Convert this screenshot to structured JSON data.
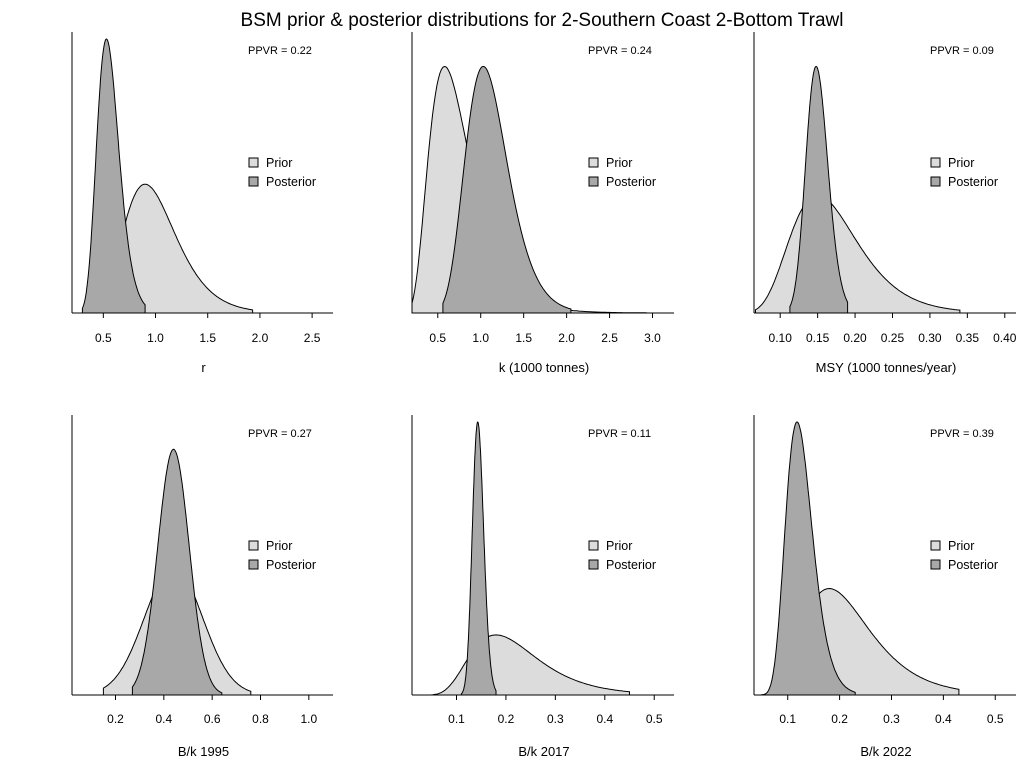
{
  "title": "BSM prior & posterior distributions for 2-Southern Coast 2-Bottom Trawl",
  "chart_data": [
    {
      "type": "area",
      "xlabel": "r",
      "ppvr": "PPVR = 0.22",
      "xlim": [
        0.2,
        2.7
      ],
      "xticks": [
        0.5,
        1.0,
        1.5,
        2.0,
        2.5
      ],
      "tick_labels": [
        "0.5",
        "1.0",
        "1.5",
        "2.0",
        "2.5"
      ],
      "legend": {
        "placement": "right",
        "entries": [
          "Prior",
          "Posterior"
        ]
      },
      "series": [
        {
          "name": "Prior",
          "color": "#dcdcdc",
          "shape": "lognormal",
          "mode": 0.9,
          "sigma": 0.28,
          "range": [
            0.43,
            1.93
          ],
          "peak": 0.47
        },
        {
          "name": "Posterior",
          "color": "#a8a8a8",
          "shape": "lognormal",
          "mode": 0.53,
          "sigma": 0.2,
          "range": [
            0.3,
            0.9
          ],
          "peak": 1.0
        }
      ]
    },
    {
      "type": "area",
      "xlabel": "k (1000 tonnes)",
      "ppvr": "PPVR = 0.24",
      "xlim": [
        0.2,
        3.25
      ],
      "xticks": [
        0.5,
        1.0,
        1.5,
        2.0,
        2.5,
        3.0
      ],
      "tick_labels": [
        "0.5",
        "1.0",
        "1.5",
        "2.0",
        "2.5",
        "3.0"
      ],
      "legend": {
        "placement": "right",
        "entries": [
          "Prior",
          "Posterior"
        ]
      },
      "series": [
        {
          "name": "Prior",
          "color": "#dcdcdc",
          "shape": "lognormal",
          "mode": 0.58,
          "sigma": 0.42,
          "range": [
            0.2,
            2.93
          ],
          "peak": 0.9
        },
        {
          "name": "Posterior",
          "color": "#a8a8a8",
          "shape": "lognormal",
          "mode": 1.03,
          "sigma": 0.24,
          "range": [
            0.56,
            2.05
          ],
          "peak": 0.9
        }
      ]
    },
    {
      "type": "area",
      "xlabel": "MSY (1000 tonnes/year)",
      "ppvr": "PPVR = 0.09",
      "xlim": [
        0.065,
        0.415
      ],
      "xticks": [
        0.1,
        0.15,
        0.2,
        0.25,
        0.3,
        0.35,
        0.4
      ],
      "tick_labels": [
        "0.10",
        "0.15",
        "0.20",
        "0.25",
        "0.30",
        "0.35",
        "0.40"
      ],
      "legend": {
        "placement": "right",
        "entries": [
          "Prior",
          "Posterior"
        ]
      },
      "series": [
        {
          "name": "Prior",
          "color": "#dcdcdc",
          "shape": "lognormal",
          "mode": 0.15,
          "sigma": 0.3,
          "range": [
            0.067,
            0.34
          ],
          "peak": 0.43
        },
        {
          "name": "Posterior",
          "color": "#a8a8a8",
          "shape": "lognormal",
          "mode": 0.148,
          "sigma": 0.1,
          "range": [
            0.113,
            0.19
          ],
          "peak": 0.9
        }
      ]
    },
    {
      "type": "area",
      "xlabel": "B/k 1995",
      "ppvr": "PPVR = 0.27",
      "xlim": [
        0.02,
        1.1
      ],
      "xticks": [
        0.2,
        0.4,
        0.6,
        0.8,
        1.0
      ],
      "tick_labels": [
        "0.2",
        "0.4",
        "0.6",
        "0.8",
        "1.0"
      ],
      "legend": {
        "placement": "right",
        "entries": [
          "Prior",
          "Posterior"
        ]
      },
      "series": [
        {
          "name": "Prior",
          "color": "#dcdcdc",
          "shape": "normal",
          "mode": 0.44,
          "sd": 0.12,
          "range": [
            0.15,
            0.76
          ],
          "peak": 0.47
        },
        {
          "name": "Posterior",
          "color": "#a8a8a8",
          "shape": "normal",
          "mode": 0.44,
          "sd": 0.065,
          "range": [
            0.27,
            0.64
          ],
          "peak": 0.9
        }
      ]
    },
    {
      "type": "area",
      "xlabel": "B/k 2017",
      "ppvr": "PPVR = 0.11",
      "xlim": [
        0.01,
        0.54
      ],
      "xticks": [
        0.1,
        0.2,
        0.3,
        0.4,
        0.5
      ],
      "tick_labels": [
        "0.1",
        "0.2",
        "0.3",
        "0.4",
        "0.5"
      ],
      "legend": {
        "placement": "right",
        "entries": [
          "Prior",
          "Posterior"
        ]
      },
      "series": [
        {
          "name": "Prior",
          "color": "#dcdcdc",
          "shape": "lognormal",
          "mode": 0.18,
          "sigma": 0.38,
          "range": [
            0.05,
            0.45
          ],
          "peak": 0.22
        },
        {
          "name": "Posterior",
          "color": "#a8a8a8",
          "shape": "lognormal",
          "mode": 0.143,
          "sigma": 0.08,
          "range": [
            0.11,
            0.18
          ],
          "peak": 1.0
        }
      ]
    },
    {
      "type": "area",
      "xlabel": "B/k 2022",
      "ppvr": "PPVR = 0.39",
      "xlim": [
        0.035,
        0.54
      ],
      "xticks": [
        0.1,
        0.2,
        0.3,
        0.4,
        0.5
      ],
      "tick_labels": [
        "0.1",
        "0.2",
        "0.3",
        "0.4",
        "0.5"
      ],
      "legend": {
        "placement": "right",
        "entries": [
          "Prior",
          "Posterior"
        ]
      },
      "series": [
        {
          "name": "Prior",
          "color": "#dcdcdc",
          "shape": "lognormal",
          "mode": 0.18,
          "sigma": 0.36,
          "range": [
            0.05,
            0.43
          ],
          "peak": 0.39
        },
        {
          "name": "Posterior",
          "color": "#a8a8a8",
          "shape": "lognormal",
          "mode": 0.118,
          "sigma": 0.22,
          "range": [
            0.04,
            0.23
          ],
          "peak": 1.0
        }
      ]
    }
  ]
}
